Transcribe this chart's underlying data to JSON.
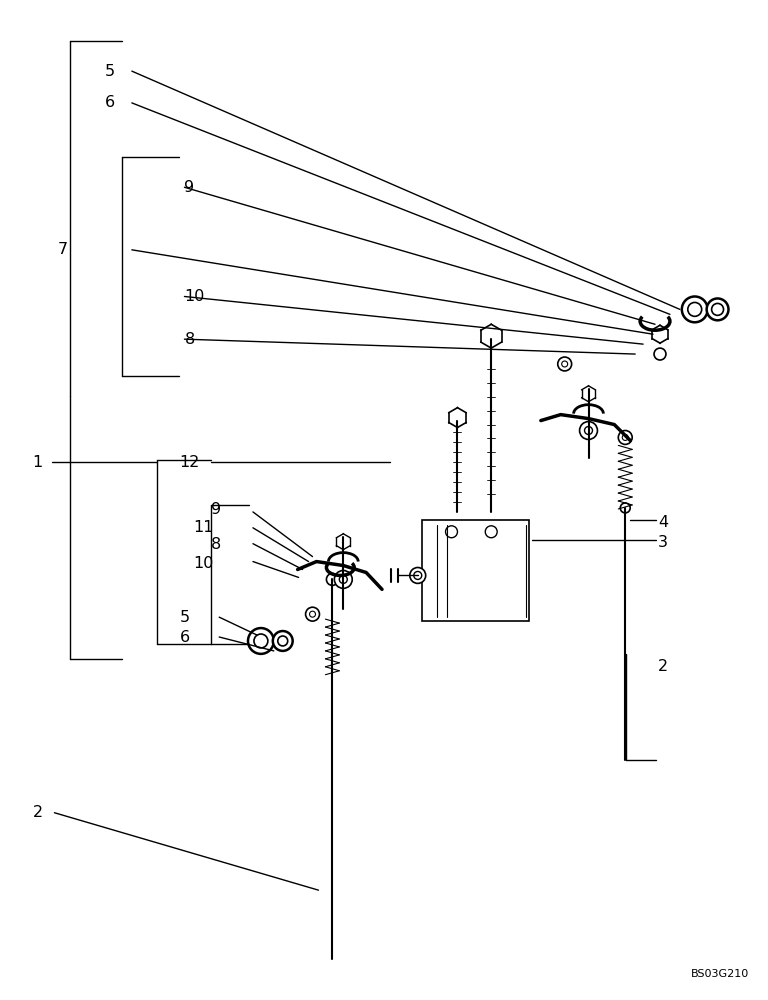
{
  "bg_color": "#ffffff",
  "line_color": "#000000",
  "fig_width": 7.68,
  "fig_height": 10.0,
  "watermark": "BS03G210"
}
